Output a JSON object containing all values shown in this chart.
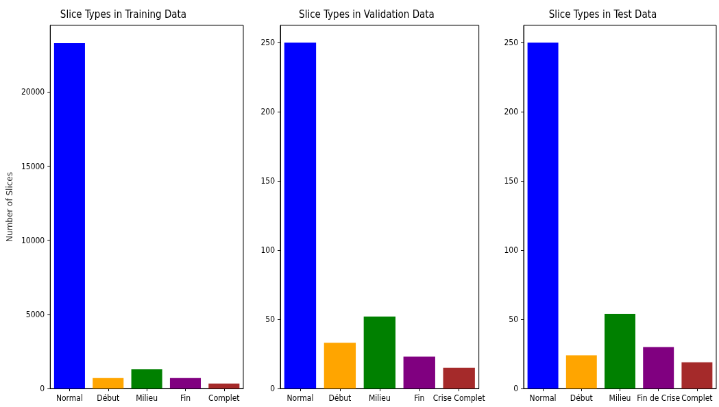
{
  "chart_data": [
    {
      "type": "bar",
      "title": "Slice Types in Training Data",
      "ylabel": "Number of Slices",
      "categories": [
        "Normal",
        "Début",
        "Milieu",
        "Fin",
        "Complet"
      ],
      "values": [
        23300,
        700,
        1300,
        700,
        330
      ],
      "colors": [
        "#0000ff",
        "#ffa500",
        "#008000",
        "#800080",
        "#a52a2a"
      ],
      "ylim": [
        0,
        24500
      ],
      "yticks": [
        0,
        5000,
        10000,
        15000,
        20000
      ]
    },
    {
      "type": "bar",
      "title": "Slice Types in Validation Data",
      "categories": [
        "Normal",
        "Début",
        "Milieu",
        "Fin",
        "Crise Complet"
      ],
      "values": [
        250,
        33,
        52,
        23,
        15
      ],
      "colors": [
        "#0000ff",
        "#ffa500",
        "#008000",
        "#800080",
        "#a52a2a"
      ],
      "ylim": [
        0,
        262.5
      ],
      "yticks": [
        0,
        50,
        100,
        150,
        200,
        250
      ]
    },
    {
      "type": "bar",
      "title": "Slice Types in Test Data",
      "categories": [
        "Normal",
        "Début",
        "Milieu",
        "Fin de Crise",
        "Complet"
      ],
      "values": [
        250,
        24,
        54,
        30,
        19
      ],
      "colors": [
        "#0000ff",
        "#ffa500",
        "#008000",
        "#800080",
        "#a52a2a"
      ],
      "ylim": [
        0,
        262.5
      ],
      "yticks": [
        0,
        50,
        100,
        150,
        200,
        250
      ]
    }
  ]
}
